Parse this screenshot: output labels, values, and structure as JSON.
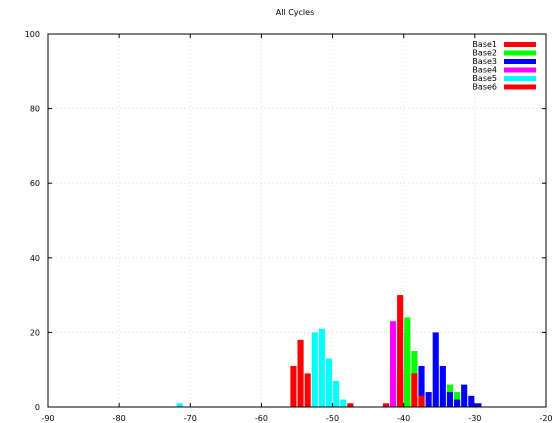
{
  "chart_data": {
    "type": "bar",
    "title": "All Cycles",
    "xlim": [
      -90,
      -20
    ],
    "ylim": [
      0,
      100
    ],
    "x_ticks": [
      -90,
      -80,
      -70,
      -60,
      -50,
      -40,
      -30,
      -20
    ],
    "y_ticks": [
      0,
      20,
      40,
      60,
      80,
      100
    ],
    "grid": true,
    "legend_position": "top-right",
    "bin_width": 1,
    "series": [
      {
        "name": "Base1",
        "color": "#ff0000",
        "points": [
          [
            -40.5,
            30
          ],
          [
            -41.5,
            8
          ],
          [
            -39.5,
            20
          ]
        ]
      },
      {
        "name": "Base2",
        "color": "#00ff00",
        "points": [
          [
            -39.5,
            24
          ],
          [
            -38.5,
            15
          ],
          [
            -37.5,
            7
          ],
          [
            -33.5,
            6
          ],
          [
            -32.5,
            4
          ]
        ]
      },
      {
        "name": "Base3",
        "color": "#0000ff",
        "points": [
          [
            -37.5,
            11
          ],
          [
            -36.5,
            4
          ],
          [
            -35.5,
            20
          ],
          [
            -34.5,
            11
          ],
          [
            -33.5,
            4
          ],
          [
            -32.5,
            2
          ],
          [
            -31.5,
            6
          ],
          [
            -30.5,
            3
          ],
          [
            -29.5,
            1
          ]
        ]
      },
      {
        "name": "Base4",
        "color": "#ff00ff",
        "points": [
          [
            -41.5,
            23
          ]
        ]
      },
      {
        "name": "Base5",
        "color": "#00ffff",
        "points": [
          [
            -71.5,
            1
          ],
          [
            -52.5,
            20
          ],
          [
            -51.5,
            21
          ],
          [
            -50.5,
            13
          ],
          [
            -49.5,
            7
          ],
          [
            -48.5,
            2
          ]
        ]
      },
      {
        "name": "Base6",
        "color": "#ff0000",
        "points": [
          [
            -55.5,
            11
          ],
          [
            -54.5,
            18
          ],
          [
            -53.5,
            9
          ],
          [
            -47.5,
            1
          ],
          [
            -42.5,
            1
          ],
          [
            -40.5,
            10
          ],
          [
            -38.5,
            9
          ],
          [
            -37.5,
            3
          ]
        ]
      }
    ]
  }
}
